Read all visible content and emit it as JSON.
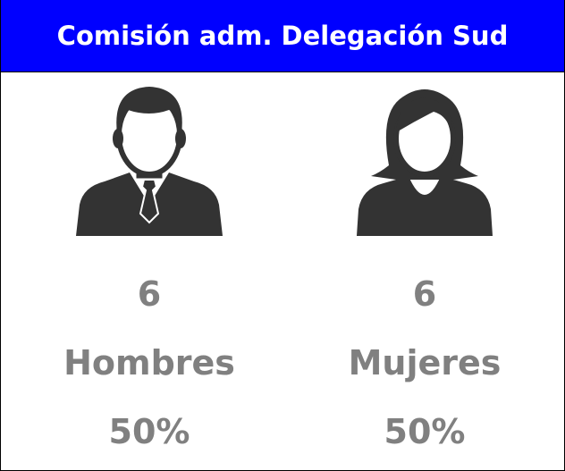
{
  "header": {
    "title": "Comisión adm. Delegación Sud"
  },
  "groups": [
    {
      "count": 6,
      "label": "Hombres",
      "percent": "50%"
    },
    {
      "count": 6,
      "label": "Mujeres",
      "percent": "50%"
    }
  ]
}
